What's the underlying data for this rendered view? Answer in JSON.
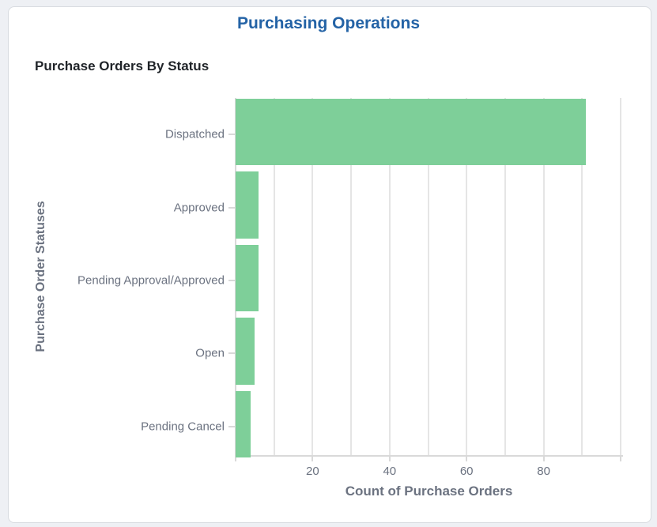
{
  "header": {
    "title": "Purchasing Operations"
  },
  "chart_data": {
    "type": "bar",
    "orientation": "horizontal",
    "title": "Purchase Orders By Status",
    "xlabel": "Count of Purchase Orders",
    "ylabel": "Purchase Order Statuses",
    "categories": [
      "Dispatched",
      "Approved",
      "Pending Approval/Approved",
      "Open",
      "Pending Cancel"
    ],
    "values": [
      91,
      6,
      6,
      5,
      4
    ],
    "xlim": [
      0,
      100
    ],
    "xticks": [
      20,
      40,
      60,
      80
    ],
    "grid": true,
    "legend": null,
    "bar_color": "#7acd96"
  }
}
